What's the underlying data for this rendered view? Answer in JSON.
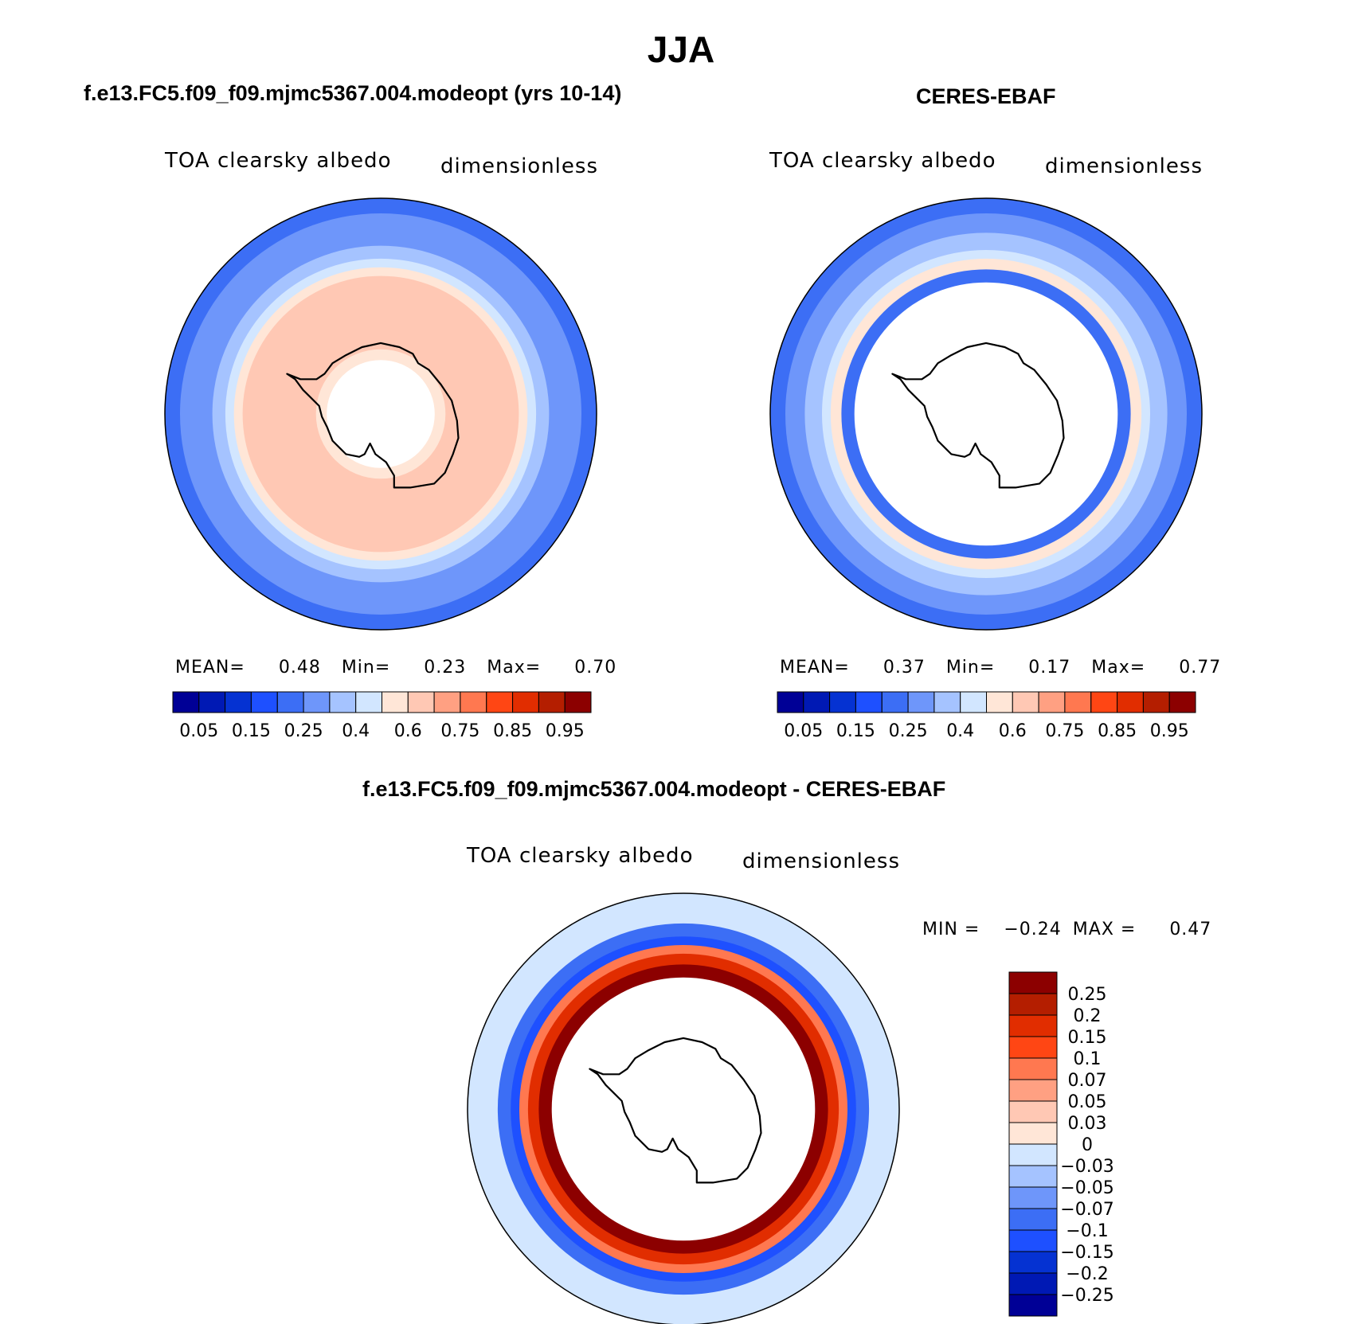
{
  "figure": {
    "season": "JJA",
    "panels": [
      {
        "id": "model",
        "case_title": "f.e13.FC5.f09_f09.mjmc5367.004.modeopt (yrs 10-14)",
        "variable": "TOA clearsky albedo",
        "units": "dimensionless",
        "stats": {
          "mean_label": "MEAN=",
          "mean": "0.48",
          "min_label": "Min=",
          "min": "0.23",
          "max_label": "Max=",
          "max": "0.70"
        }
      },
      {
        "id": "obs",
        "case_title": "CERES-EBAF",
        "variable": "TOA clearsky albedo",
        "units": "dimensionless",
        "stats": {
          "mean_label": "MEAN=",
          "mean": "0.37",
          "min_label": "Min=",
          "min": "0.17",
          "max_label": "Max=",
          "max": "0.77"
        }
      },
      {
        "id": "diff",
        "case_title": "f.e13.FC5.f09_f09.mjmc5367.004.modeopt - CERES-EBAF",
        "variable": "TOA clearsky albedo",
        "units": "dimensionless",
        "stats": {
          "min_label": "MIN =",
          "min": "−0.24",
          "max_label": "MAX =",
          "max": "0.47"
        }
      }
    ],
    "colorbar_abs": {
      "colors": [
        "#000096",
        "#0019b4",
        "#0532d2",
        "#1e50ff",
        "#3c6ef5",
        "#6e96fa",
        "#a5c3ff",
        "#d2e6ff",
        "#ffe6d7",
        "#ffc8b4",
        "#ffa082",
        "#ff7850",
        "#ff4614",
        "#e12d00",
        "#b41e00",
        "#8c0000"
      ],
      "tick_labels": [
        "0.05",
        "0.15",
        "0.25",
        "0.4",
        "0.6",
        "0.75",
        "0.85",
        "0.95"
      ]
    },
    "colorbar_diff": {
      "colors": [
        "#8c0000",
        "#b41e00",
        "#e12d00",
        "#ff4614",
        "#ff7850",
        "#ffa082",
        "#ffc8b4",
        "#ffe6d7",
        "#d2e6ff",
        "#a5c3ff",
        "#6e96fa",
        "#3c6ef5",
        "#1e50ff",
        "#0532d2",
        "#0019b4",
        "#000096"
      ],
      "tick_labels": [
        "0.25",
        "0.2",
        "0.15",
        "0.1",
        "0.07",
        "0.05",
        "0.03",
        "0",
        "−0.03",
        "−0.05",
        "−0.07",
        "−0.1",
        "−0.15",
        "−0.2",
        "−0.25"
      ]
    },
    "fields": {
      "model_rings": [
        {
          "r_frac": 1.0,
          "color": "#3c6ef5"
        },
        {
          "r_frac": 0.93,
          "color": "#6e96fa"
        },
        {
          "r_frac": 0.78,
          "color": "#a5c3ff"
        },
        {
          "r_frac": 0.72,
          "color": "#d2e6ff"
        },
        {
          "r_frac": 0.68,
          "color": "#ffe6d7"
        },
        {
          "r_frac": 0.64,
          "color": "#ffc8b4"
        },
        {
          "r_frac": 0.3,
          "color": "#ffe6d7"
        },
        {
          "r_frac": 0.25,
          "color": "#ffffff"
        }
      ],
      "obs_rings": [
        {
          "r_frac": 1.0,
          "color": "#3c6ef5"
        },
        {
          "r_frac": 0.93,
          "color": "#6e96fa"
        },
        {
          "r_frac": 0.84,
          "color": "#a5c3ff"
        },
        {
          "r_frac": 0.76,
          "color": "#d2e6ff"
        },
        {
          "r_frac": 0.72,
          "color": "#ffe6d7"
        },
        {
          "r_frac": 0.67,
          "color": "#3c6ef5"
        },
        {
          "r_frac": 0.61,
          "color": "#ffffff"
        }
      ],
      "diff_rings": [
        {
          "r_frac": 1.0,
          "color": "#d2e6ff"
        },
        {
          "r_frac": 0.86,
          "color": "#3c6ef5"
        },
        {
          "r_frac": 0.8,
          "color": "#1e50ff"
        },
        {
          "r_frac": 0.76,
          "color": "#ff7850"
        },
        {
          "r_frac": 0.72,
          "color": "#e12d00"
        },
        {
          "r_frac": 0.67,
          "color": "#8c0000"
        },
        {
          "r_frac": 0.61,
          "color": "#ffffff"
        }
      ]
    }
  }
}
